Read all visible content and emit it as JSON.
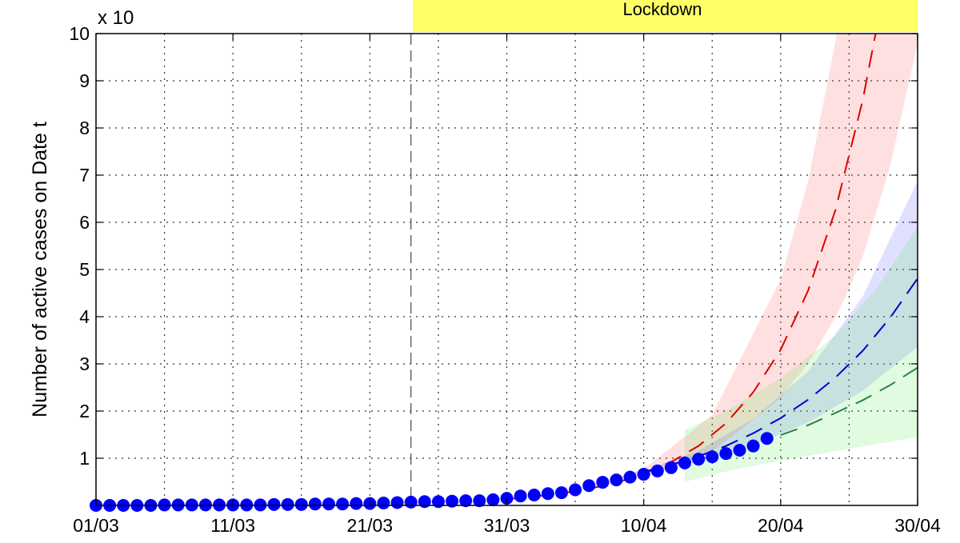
{
  "chart_data": {
    "type": "scatter",
    "title": "",
    "xlabel": "",
    "ylabel": "Number of active cases on Date t",
    "y_multiplier_label": "x 10",
    "xlim": [
      "01/03",
      "30/04"
    ],
    "ylim": [
      0,
      10
    ],
    "grid": true,
    "x_tick_labels": [
      "01/03",
      "11/03",
      "21/03",
      "31/03",
      "10/04",
      "20/04",
      "30/04"
    ],
    "y_tick_labels": [
      "1",
      "2",
      "3",
      "4",
      "5",
      "6",
      "7",
      "8",
      "9",
      "10"
    ],
    "annotation": {
      "label": "Lockdown",
      "start_line_date": "24/03",
      "color": "#ffff66"
    },
    "colors": {
      "points": "#0000ff",
      "red": "#dd0000",
      "blue": "#0000cc",
      "green": "#2e7d4f"
    },
    "observed": [
      [
        "01/03",
        0
      ],
      [
        "02/03",
        0
      ],
      [
        "03/03",
        0
      ],
      [
        "04/03",
        0
      ],
      [
        "05/03",
        0
      ],
      [
        "06/03",
        0.01
      ],
      [
        "07/03",
        0.01
      ],
      [
        "08/03",
        0.01
      ],
      [
        "09/03",
        0.01
      ],
      [
        "10/03",
        0.01
      ],
      [
        "11/03",
        0.01
      ],
      [
        "12/03",
        0.01
      ],
      [
        "13/03",
        0.01
      ],
      [
        "14/03",
        0.02
      ],
      [
        "15/03",
        0.02
      ],
      [
        "16/03",
        0.02
      ],
      [
        "17/03",
        0.03
      ],
      [
        "18/03",
        0.03
      ],
      [
        "19/03",
        0.03
      ],
      [
        "20/03",
        0.04
      ],
      [
        "21/03",
        0.04
      ],
      [
        "22/03",
        0.05
      ],
      [
        "23/03",
        0.06
      ],
      [
        "24/03",
        0.07
      ],
      [
        "25/03",
        0.08
      ],
      [
        "26/03",
        0.08
      ],
      [
        "27/03",
        0.09
      ],
      [
        "28/03",
        0.1
      ],
      [
        "29/03",
        0.1
      ],
      [
        "30/03",
        0.12
      ],
      [
        "31/03",
        0.15
      ],
      [
        "01/04",
        0.2
      ],
      [
        "02/04",
        0.22
      ],
      [
        "03/04",
        0.25
      ],
      [
        "04/04",
        0.27
      ],
      [
        "05/04",
        0.33
      ],
      [
        "06/04",
        0.42
      ],
      [
        "07/04",
        0.49
      ],
      [
        "08/04",
        0.54
      ],
      [
        "09/04",
        0.6
      ],
      [
        "10/04",
        0.66
      ],
      [
        "11/04",
        0.73
      ],
      [
        "12/04",
        0.8
      ],
      [
        "13/04",
        0.9
      ],
      [
        "14/04",
        0.98
      ],
      [
        "15/04",
        1.03
      ],
      [
        "16/04",
        1.1
      ],
      [
        "17/04",
        1.17
      ],
      [
        "18/04",
        1.26
      ],
      [
        "19/04",
        1.42
      ]
    ],
    "fits": [
      {
        "color": "red",
        "line": [
          [
            "31/03",
            0.134
          ],
          [
            "02/04",
            0.185
          ],
          [
            "04/04",
            0.255
          ],
          [
            "06/04",
            0.35
          ],
          [
            "08/04",
            0.48
          ],
          [
            "10/04",
            0.67
          ],
          [
            "12/04",
            0.92
          ],
          [
            "14/04",
            1.26
          ],
          [
            "16/04",
            1.74
          ],
          [
            "18/04",
            2.4
          ],
          [
            "20/04",
            3.3
          ],
          [
            "22/04",
            4.55
          ],
          [
            "24/04",
            6.26
          ],
          [
            "26/04",
            8.6
          ],
          [
            "27/04",
            10.1
          ]
        ],
        "band": [
          [
            "05/04",
            0.3,
            0.3
          ],
          [
            "10/04",
            0.58,
            0.77
          ],
          [
            "15/04",
            1.14,
            1.92
          ],
          [
            "20/04",
            2.28,
            4.79
          ],
          [
            "22/04",
            3.01,
            6.87
          ],
          [
            "24/04",
            3.99,
            9.83
          ],
          [
            "25/04",
            4.59,
            11.7
          ],
          [
            "26/04",
            5.28,
            14
          ],
          [
            "28/04",
            7.2,
            19
          ],
          [
            "30/04",
            9.8,
            26
          ]
        ]
      },
      {
        "color": "blue",
        "line": [
          [
            "10/04",
            0.71
          ],
          [
            "12/04",
            0.86
          ],
          [
            "14/04",
            1.04
          ],
          [
            "16/04",
            1.26
          ],
          [
            "18/04",
            1.53
          ],
          [
            "20/04",
            1.85
          ],
          [
            "22/04",
            2.24
          ],
          [
            "24/04",
            2.71
          ],
          [
            "26/04",
            3.28
          ],
          [
            "28/04",
            3.98
          ],
          [
            "30/04",
            4.81
          ]
        ],
        "band": [
          [
            "08/04",
            0.58,
            0.58
          ],
          [
            "10/04",
            0.68,
            0.74
          ],
          [
            "14/04",
            0.93,
            1.16
          ],
          [
            "18/04",
            1.28,
            1.83
          ],
          [
            "22/04",
            1.76,
            2.84
          ],
          [
            "26/04",
            2.43,
            4.43
          ],
          [
            "30/04",
            3.36,
            6.88
          ]
        ]
      },
      {
        "color": "green",
        "line": [
          [
            "20/04",
            1.49
          ],
          [
            "22/04",
            1.7
          ],
          [
            "24/04",
            1.96
          ],
          [
            "26/04",
            2.23
          ],
          [
            "28/04",
            2.55
          ],
          [
            "30/04",
            2.92
          ]
        ],
        "band": [
          [
            "13/04",
            0.5,
            1.6
          ],
          [
            "16/04",
            0.72,
            2.0
          ],
          [
            "20/04",
            0.95,
            2.7
          ],
          [
            "24/04",
            1.15,
            3.6
          ],
          [
            "27/04",
            1.3,
            4.6
          ],
          [
            "30/04",
            1.45,
            5.9
          ]
        ]
      }
    ]
  }
}
